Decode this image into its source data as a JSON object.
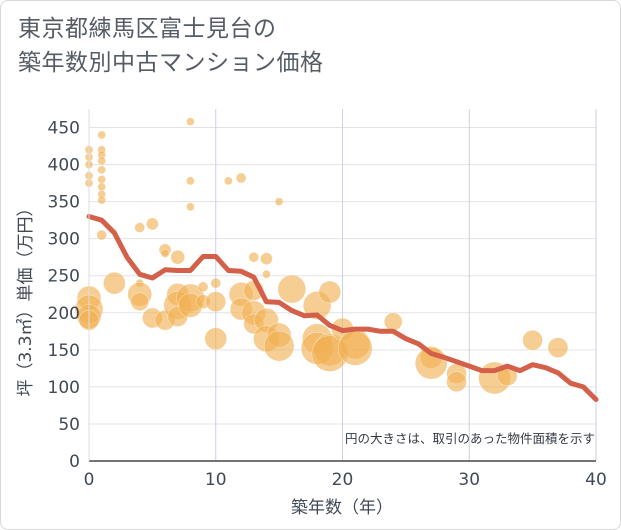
{
  "title_lines": [
    "東京都練馬区富士見台の",
    "築年数別中古マンション価格"
  ],
  "chart_data": {
    "type": "scatter",
    "title": "東京都練馬区富士見台の築年数別中古マンション価格",
    "xlabel": "築年数（年）",
    "ylabel": "坪（3.3㎡）単価（万円）",
    "xlim": [
      0,
      40
    ],
    "ylim": [
      0,
      475
    ],
    "x_ticks": [
      0,
      10,
      20,
      30,
      40
    ],
    "y_ticks": [
      0,
      50,
      100,
      150,
      200,
      250,
      300,
      350,
      400,
      450
    ],
    "grid": true,
    "annotation": "円の大きさは、取引のあった物件面積を示す",
    "colors": {
      "bubble": "#f0b050",
      "line": "#d4604a"
    },
    "bubbles": [
      {
        "x": 0,
        "y": 420,
        "r": 4
      },
      {
        "x": 0,
        "y": 410,
        "r": 4
      },
      {
        "x": 0,
        "y": 400,
        "r": 4
      },
      {
        "x": 0,
        "y": 385,
        "r": 4
      },
      {
        "x": 0,
        "y": 375,
        "r": 4
      },
      {
        "x": 0,
        "y": 220,
        "r": 12
      },
      {
        "x": 0,
        "y": 205,
        "r": 14
      },
      {
        "x": 0,
        "y": 195,
        "r": 12
      },
      {
        "x": 0,
        "y": 190,
        "r": 10
      },
      {
        "x": 1,
        "y": 440,
        "r": 4
      },
      {
        "x": 1,
        "y": 420,
        "r": 4
      },
      {
        "x": 1,
        "y": 413,
        "r": 4
      },
      {
        "x": 1,
        "y": 405,
        "r": 4
      },
      {
        "x": 1,
        "y": 393,
        "r": 4
      },
      {
        "x": 1,
        "y": 380,
        "r": 4
      },
      {
        "x": 1,
        "y": 370,
        "r": 4
      },
      {
        "x": 1,
        "y": 360,
        "r": 4
      },
      {
        "x": 1,
        "y": 352,
        "r": 4
      },
      {
        "x": 1,
        "y": 305,
        "r": 5
      },
      {
        "x": 2,
        "y": 240,
        "r": 11
      },
      {
        "x": 4,
        "y": 315,
        "r": 5
      },
      {
        "x": 4,
        "y": 240,
        "r": 4
      },
      {
        "x": 4,
        "y": 225,
        "r": 12
      },
      {
        "x": 4,
        "y": 215,
        "r": 9
      },
      {
        "x": 5,
        "y": 320,
        "r": 6
      },
      {
        "x": 5,
        "y": 193,
        "r": 10
      },
      {
        "x": 6,
        "y": 285,
        "r": 6
      },
      {
        "x": 6,
        "y": 280,
        "r": 4
      },
      {
        "x": 6,
        "y": 190,
        "r": 10
      },
      {
        "x": 7,
        "y": 275,
        "r": 7
      },
      {
        "x": 7,
        "y": 225,
        "r": 11
      },
      {
        "x": 7,
        "y": 210,
        "r": 14
      },
      {
        "x": 7,
        "y": 195,
        "r": 10
      },
      {
        "x": 8,
        "y": 458,
        "r": 4
      },
      {
        "x": 8,
        "y": 378,
        "r": 4
      },
      {
        "x": 8,
        "y": 343,
        "r": 4
      },
      {
        "x": 8,
        "y": 220,
        "r": 14
      },
      {
        "x": 8,
        "y": 210,
        "r": 12
      },
      {
        "x": 9,
        "y": 235,
        "r": 5
      },
      {
        "x": 9,
        "y": 215,
        "r": 7
      },
      {
        "x": 10,
        "y": 240,
        "r": 5
      },
      {
        "x": 10,
        "y": 215,
        "r": 10
      },
      {
        "x": 10,
        "y": 165,
        "r": 11
      },
      {
        "x": 11,
        "y": 378,
        "r": 4
      },
      {
        "x": 12,
        "y": 382,
        "r": 5
      },
      {
        "x": 12,
        "y": 225,
        "r": 12
      },
      {
        "x": 12,
        "y": 205,
        "r": 11
      },
      {
        "x": 13,
        "y": 275,
        "r": 5
      },
      {
        "x": 13,
        "y": 230,
        "r": 10
      },
      {
        "x": 13,
        "y": 200,
        "r": 12
      },
      {
        "x": 13,
        "y": 185,
        "r": 10
      },
      {
        "x": 14,
        "y": 273,
        "r": 6
      },
      {
        "x": 14,
        "y": 252,
        "r": 4
      },
      {
        "x": 14,
        "y": 190,
        "r": 12
      },
      {
        "x": 14,
        "y": 165,
        "r": 13
      },
      {
        "x": 15,
        "y": 350,
        "r": 4
      },
      {
        "x": 15,
        "y": 170,
        "r": 12
      },
      {
        "x": 15,
        "y": 155,
        "r": 15
      },
      {
        "x": 16,
        "y": 232,
        "r": 14
      },
      {
        "x": 18,
        "y": 210,
        "r": 14
      },
      {
        "x": 18,
        "y": 165,
        "r": 15
      },
      {
        "x": 18,
        "y": 152,
        "r": 16
      },
      {
        "x": 19,
        "y": 228,
        "r": 11
      },
      {
        "x": 19,
        "y": 150,
        "r": 16
      },
      {
        "x": 19,
        "y": 145,
        "r": 18
      },
      {
        "x": 20,
        "y": 178,
        "r": 11
      },
      {
        "x": 21,
        "y": 158,
        "r": 15
      },
      {
        "x": 21,
        "y": 152,
        "r": 17
      },
      {
        "x": 24,
        "y": 188,
        "r": 9
      },
      {
        "x": 27,
        "y": 140,
        "r": 11
      },
      {
        "x": 27,
        "y": 132,
        "r": 16
      },
      {
        "x": 29,
        "y": 118,
        "r": 10
      },
      {
        "x": 29,
        "y": 107,
        "r": 10
      },
      {
        "x": 32,
        "y": 112,
        "r": 16
      },
      {
        "x": 33,
        "y": 115,
        "r": 10
      },
      {
        "x": 35,
        "y": 163,
        "r": 10
      },
      {
        "x": 37,
        "y": 153,
        "r": 10
      }
    ],
    "series": [
      {
        "type": "line",
        "x": [
          0,
          1,
          2,
          3,
          4,
          5,
          6,
          7,
          8,
          9,
          10,
          11,
          12,
          13,
          14,
          15,
          16,
          17,
          18,
          19,
          20,
          21,
          22,
          23,
          24,
          25,
          26,
          27,
          28,
          29,
          30,
          31,
          32,
          33,
          34,
          35,
          36,
          37,
          38,
          39,
          40
        ],
        "values": [
          330,
          325,
          308,
          275,
          252,
          247,
          258,
          257,
          257,
          276,
          276,
          257,
          256,
          248,
          215,
          214,
          203,
          196,
          197,
          183,
          176,
          178,
          178,
          175,
          175,
          165,
          158,
          145,
          140,
          134,
          128,
          122,
          122,
          128,
          122,
          130,
          126,
          119,
          105,
          100,
          83
        ]
      }
    ]
  }
}
